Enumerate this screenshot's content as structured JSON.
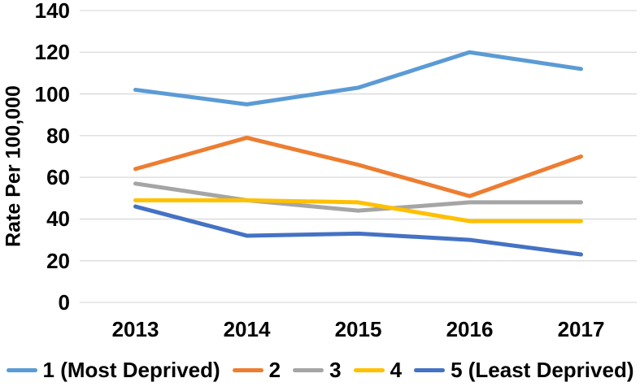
{
  "chart_data": {
    "type": "line",
    "title": "",
    "xlabel": "",
    "ylabel": "Rate Per 100,000",
    "categories": [
      "2013",
      "2014",
      "2015",
      "2016",
      "2017"
    ],
    "series": [
      {
        "name": "1 (Most Deprived)",
        "color": "#5B9BD5",
        "values": [
          102,
          95,
          103,
          120,
          112
        ]
      },
      {
        "name": "2",
        "color": "#ED7D31",
        "values": [
          64,
          79,
          66,
          51,
          70
        ]
      },
      {
        "name": "3",
        "color": "#A5A5A5",
        "values": [
          57,
          49,
          44,
          48,
          48
        ]
      },
      {
        "name": "4",
        "color": "#FFC000",
        "values": [
          49,
          49,
          48,
          39,
          39
        ]
      },
      {
        "name": "5 (Least Deprived)",
        "color": "#4472C4",
        "values": [
          46,
          32,
          33,
          30,
          23
        ]
      }
    ],
    "ylim": [
      0,
      140
    ],
    "ytick_step": 20,
    "grid": "horizontal",
    "gridline_color": "#D9D9D9",
    "legend_position": "bottom",
    "text_color": "#000000",
    "background_color": "#FFFFFF"
  }
}
